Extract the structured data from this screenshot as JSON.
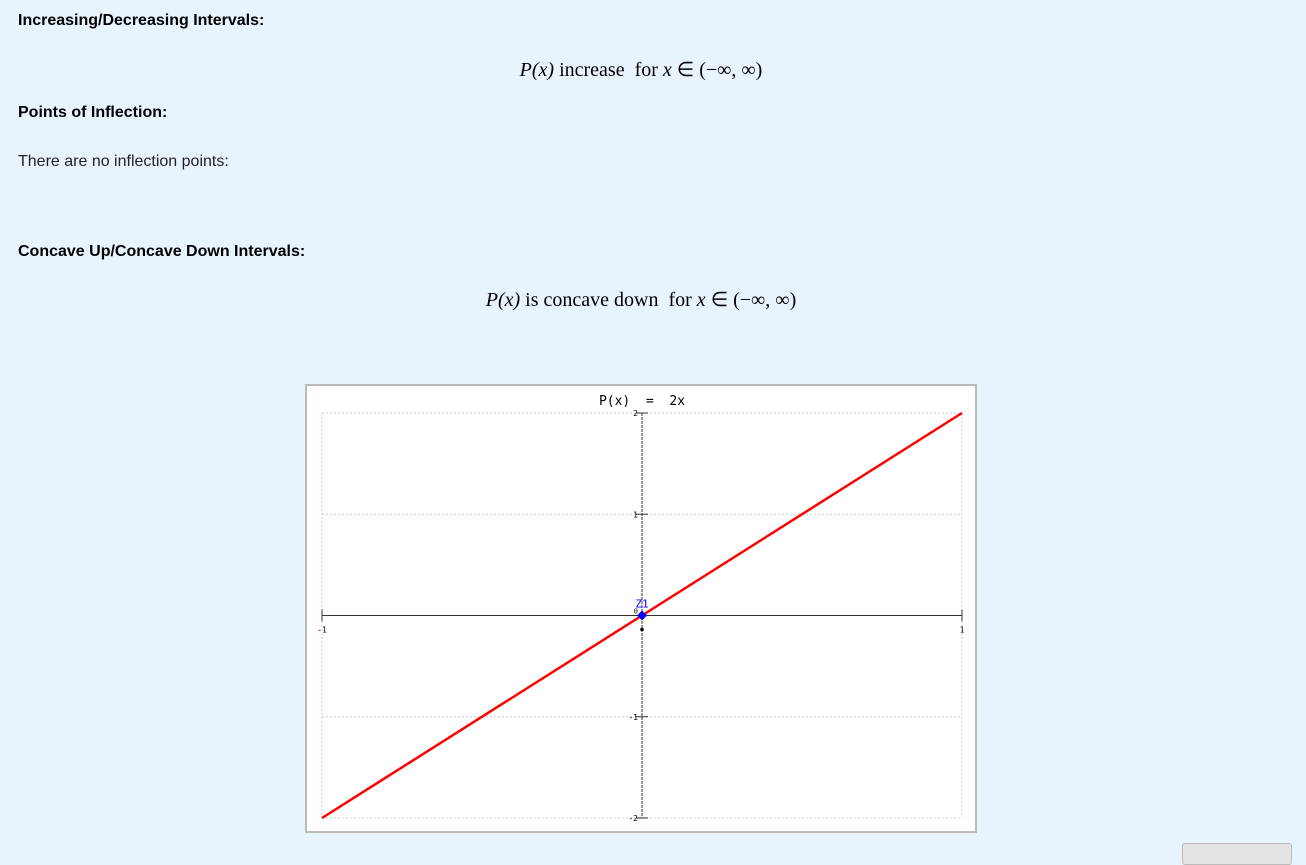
{
  "sections": {
    "increasing": {
      "heading": "Increasing/Decreasing Intervals:",
      "func": "P(x)",
      "text": " increase  for ",
      "var": "x",
      "interval": " ∈ (−∞, ∞)"
    },
    "inflection": {
      "heading": "Points of Inflection:",
      "text": "There are no inflection points:"
    },
    "concavity": {
      "heading": "Concave Up/Concave Down Intervals:",
      "func": "P(x)",
      "text": " is concave down  for ",
      "var": "x",
      "interval": " ∈ (−∞, ∞)"
    }
  },
  "chart_data": {
    "type": "line",
    "title": "P(x)  =  2x",
    "xlim": [
      -1,
      1
    ],
    "ylim": [
      -2,
      2
    ],
    "x_ticks": [
      "-1",
      "1"
    ],
    "y_ticks": [
      "2",
      "1",
      "-1",
      "-2"
    ],
    "origin_label": "0",
    "grid": true,
    "series": [
      {
        "x": [
          -1,
          1
        ],
        "y": [
          -2,
          2
        ],
        "color": "#ff0000"
      }
    ],
    "points": [
      {
        "label": "Z1",
        "x": 0,
        "y": 0,
        "color": "#0000ff"
      }
    ]
  }
}
